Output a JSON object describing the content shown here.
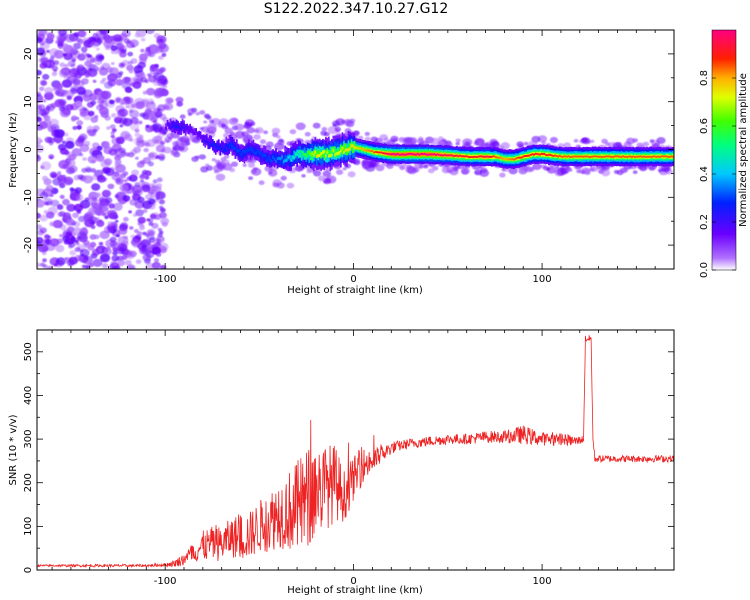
{
  "figure_title": "S122.2022.347.10.27.G12",
  "colors": {
    "snr_line": "#ee2222",
    "plot_background": "#ffffff",
    "noise_speckle": "#8a2be2",
    "ridge_core": "#ee2222"
  },
  "chart_data": [
    {
      "type": "heatmap",
      "title": "",
      "xlabel": "Height of straight line (km)",
      "ylabel": "Frequency (Hz)",
      "xlim": [
        -168,
        170
      ],
      "ylim": [
        -25,
        25
      ],
      "x_ticks": [
        -100,
        0,
        100
      ],
      "y_ticks": [
        -20,
        -10,
        0,
        10,
        20
      ],
      "grid": false,
      "colorbar": {
        "label": "Normalized spectral amplitude",
        "range": [
          0,
          1
        ],
        "ticks": [
          0.0,
          0.2,
          0.4,
          0.6,
          0.8
        ],
        "colormap": "rainbow (violet-blue-cyan-green-yellow-red-magenta)"
      },
      "ridge": {
        "description": "frequency of peak spectral amplitude vs height",
        "x": [
          -100,
          -95,
          -90,
          -85,
          -80,
          -75,
          -70,
          -65,
          -60,
          -55,
          -50,
          -45,
          -40,
          -35,
          -30,
          -25,
          -20,
          -15,
          -10,
          -5,
          0,
          5,
          10,
          20,
          30,
          40,
          50,
          60,
          65,
          70,
          75,
          80,
          85,
          90,
          95,
          100,
          110,
          120,
          130,
          140,
          150,
          160,
          170
        ],
        "y": [
          5,
          5,
          4.5,
          4,
          2,
          1,
          0,
          1,
          -1,
          0,
          -1,
          -2,
          -2,
          -2,
          -1,
          -1,
          -1,
          -1,
          -0.5,
          0,
          0.5,
          0,
          -0.5,
          -1,
          -1,
          -1,
          -1.2,
          -1.5,
          -1.5,
          -1.5,
          -1.5,
          -2,
          -2,
          -1.5,
          -1,
          -1,
          -1.5,
          -1.5,
          -1.5,
          -1.5,
          -1.5,
          -1.5,
          -1.5
        ],
        "amplitude": [
          0.15,
          0.25,
          0.2,
          0.15,
          0.2,
          0.25,
          0.25,
          0.3,
          0.3,
          0.3,
          0.3,
          0.3,
          0.35,
          0.4,
          0.5,
          0.6,
          0.75,
          0.7,
          0.7,
          0.75,
          0.75,
          0.8,
          0.85,
          1.0,
          1.0,
          1.0,
          0.95,
          0.9,
          0.9,
          0.95,
          0.85,
          0.8,
          0.85,
          0.9,
          0.9,
          0.9,
          0.85,
          0.85,
          0.85,
          0.85,
          0.85,
          0.85,
          0.85
        ]
      },
      "noise_region": {
        "x_range": [
          -168,
          -100
        ],
        "y_range": [
          -25,
          25
        ],
        "amplitude": 0.1
      }
    },
    {
      "type": "line",
      "title": "",
      "xlabel": "Height of straight line (km)",
      "ylabel": "SNR (10 * v/v)",
      "xlim": [
        -168,
        170
      ],
      "ylim": [
        0,
        550
      ],
      "x_ticks": [
        -100,
        0,
        100
      ],
      "y_ticks": [
        0,
        100,
        200,
        300,
        400,
        500
      ],
      "grid": false,
      "series": [
        {
          "x": [
            -168,
            -140,
            -110,
            -100,
            -95,
            -90,
            -85,
            -80,
            -75,
            -70,
            -65,
            -60,
            -55,
            -50,
            -45,
            -40,
            -35,
            -30,
            -25,
            -20,
            -15,
            -10,
            -5,
            0,
            5,
            10,
            15,
            20,
            25,
            30,
            40,
            50,
            60,
            70,
            80,
            90,
            100,
            110,
            118,
            122,
            123,
            126,
            127,
            128,
            130,
            140,
            150,
            160,
            170
          ],
          "y": [
            10,
            10,
            10,
            12,
            15,
            25,
            40,
            55,
            60,
            60,
            75,
            75,
            80,
            100,
            110,
            130,
            135,
            140,
            160,
            185,
            190,
            200,
            170,
            210,
            240,
            250,
            265,
            280,
            285,
            290,
            295,
            300,
            300,
            305,
            305,
            310,
            300,
            300,
            295,
            300,
            530,
            530,
            300,
            255,
            255,
            255,
            255,
            255,
            255
          ],
          "noise": [
            2,
            3,
            3,
            4,
            8,
            15,
            25,
            35,
            40,
            40,
            45,
            55,
            55,
            60,
            70,
            80,
            90,
            110,
            120,
            110,
            100,
            90,
            60,
            50,
            40,
            30,
            20,
            15,
            12,
            12,
            12,
            12,
            12,
            14,
            14,
            22,
            15,
            14,
            12,
            8,
            8,
            8,
            8,
            8,
            8,
            8,
            8,
            8,
            8
          ]
        }
      ]
    }
  ]
}
